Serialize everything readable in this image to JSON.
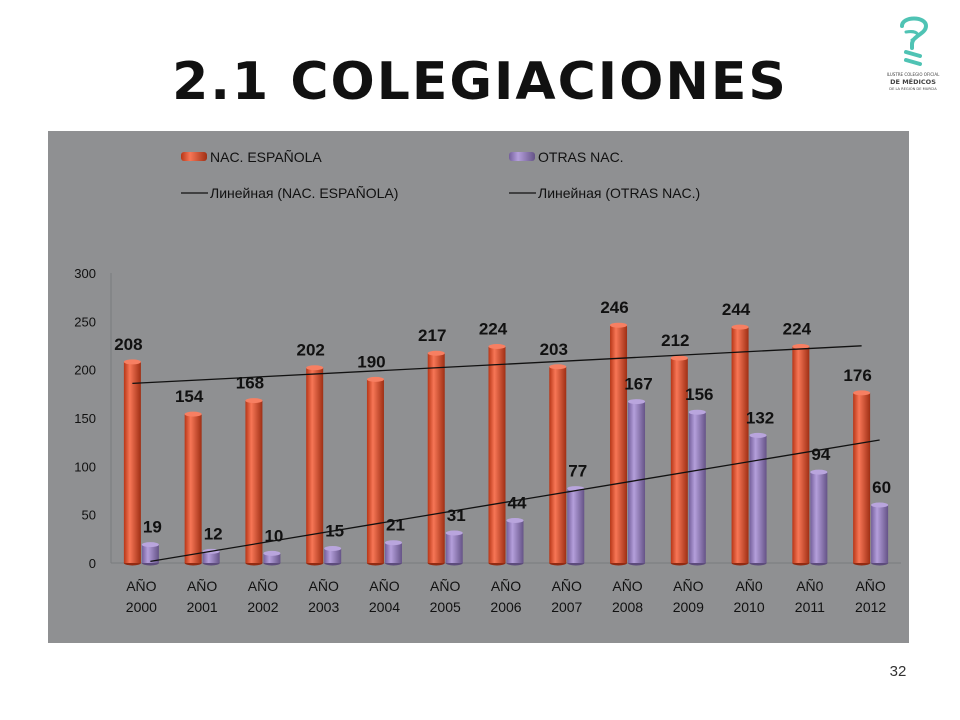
{
  "slide": {
    "title": "2.1 COLEGIACIONES",
    "page_number": "32",
    "logo_text": [
      "ILUSTRE COLEGIO OFICIAL",
      "DE MÉDICOS",
      "DE LA REGIÓN DE MURCIA"
    ]
  },
  "colors": {
    "background": "#ffffff",
    "chart_background": "#8f9092",
    "series_1": "#f4481e",
    "series_2": "#9b7fcf",
    "trendline": "#111111",
    "logo_accent": "#4fc3b4"
  },
  "chart_data": {
    "type": "bar",
    "bar_style": "3d-cylinder",
    "categories": [
      [
        "AÑO",
        "2000"
      ],
      [
        "AÑO",
        "2001"
      ],
      [
        "AÑO",
        "2002"
      ],
      [
        "AÑO",
        "2003"
      ],
      [
        "AÑO",
        "2004"
      ],
      [
        "AÑO",
        "2005"
      ],
      [
        "AÑO",
        "2006"
      ],
      [
        "AÑO",
        "2007"
      ],
      [
        "AÑO",
        "2008"
      ],
      [
        "AÑO",
        "2009"
      ],
      [
        "AÑ0",
        "2010"
      ],
      [
        "AÑ0",
        "2011"
      ],
      [
        "AÑO",
        "2012"
      ]
    ],
    "series": [
      {
        "name": "NAC. ESPAÑOLA",
        "color": "#f4481e",
        "values": [
          208,
          154,
          168,
          202,
          190,
          217,
          224,
          203,
          246,
          212,
          244,
          224,
          176
        ]
      },
      {
        "name": "OTRAS NAC.",
        "color": "#9b7fcf",
        "values": [
          19,
          12,
          10,
          15,
          21,
          31,
          44,
          77,
          167,
          156,
          132,
          94,
          60
        ]
      }
    ],
    "trendlines": [
      {
        "name": "Линейная (NAC. ESPAÑOLA)",
        "series": 0,
        "type": "linear"
      },
      {
        "name": "Линейная (OTRAS NAC.)",
        "series": 1,
        "type": "linear"
      }
    ],
    "ylim": [
      0,
      300
    ],
    "yticks": [
      0,
      50,
      100,
      150,
      200,
      250,
      300
    ],
    "grid": false,
    "legend_position": "top",
    "data_labels": true
  }
}
